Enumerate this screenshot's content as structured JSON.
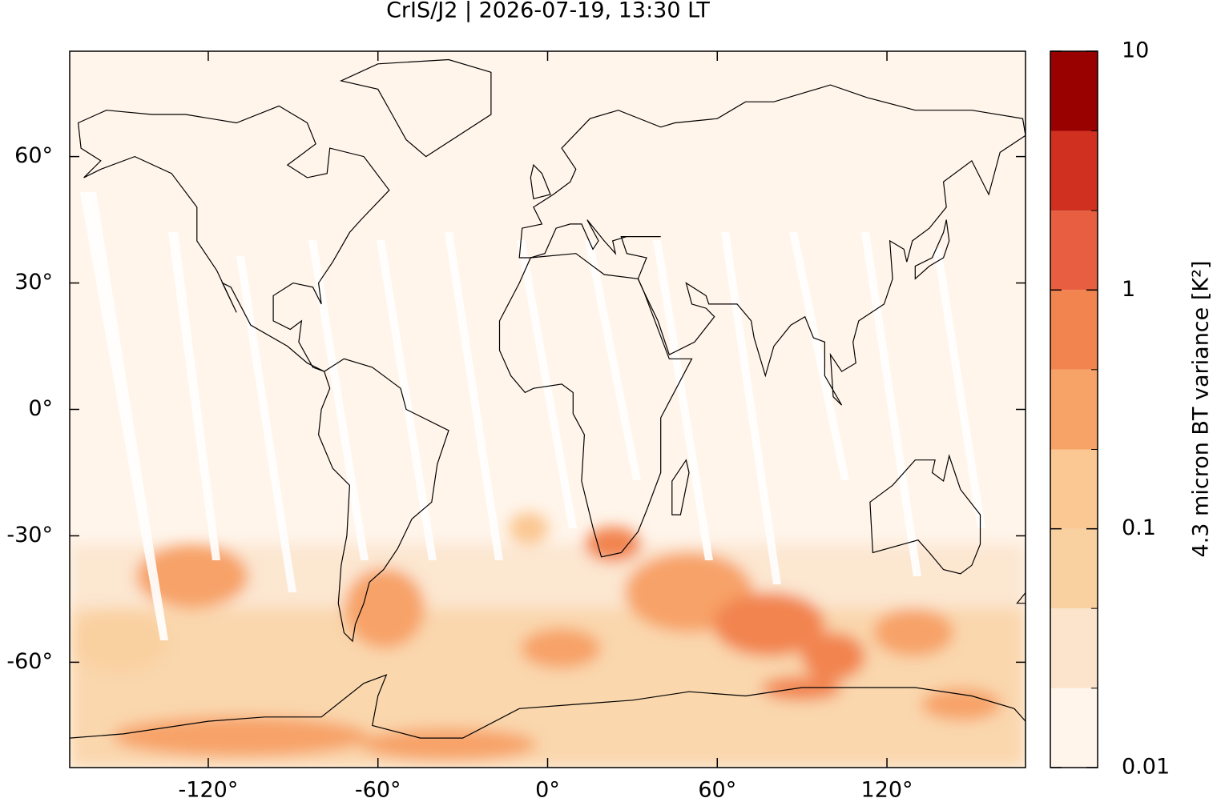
{
  "chart_data": {
    "type": "map",
    "title": "CrIS/J2 | 2026-07-19, 13:30 LT",
    "xlim": [
      -169,
      169
    ],
    "ylim": [
      -85,
      85
    ],
    "xticks": [
      {
        "value": -120,
        "label": "-120°"
      },
      {
        "value": -60,
        "label": "-60°"
      },
      {
        "value": 0,
        "label": "0°"
      },
      {
        "value": 60,
        "label": "60°"
      },
      {
        "value": 120,
        "label": "120°"
      }
    ],
    "yticks": [
      {
        "value": 60,
        "label": "60°"
      },
      {
        "value": 30,
        "label": "30°"
      },
      {
        "value": 0,
        "label": "0°"
      },
      {
        "value": -30,
        "label": "-30°"
      },
      {
        "value": -60,
        "label": "-60°"
      }
    ],
    "colorbar": {
      "label": "4.3 micron BT variance [K²]",
      "scale": "log",
      "lim": [
        0.01,
        10
      ],
      "ticks": [
        0.01,
        0.1,
        1,
        10
      ],
      "boundaries": [
        0.01,
        0.0215,
        0.0464,
        0.1,
        0.215,
        0.464,
        1,
        2.15,
        4.64,
        10
      ],
      "colors": [
        "#fff5eb",
        "#fbe4cb",
        "#f9d0a0",
        "#fbc792",
        "#f7a267",
        "#f2844f",
        "#e85e41",
        "#d0301f",
        "#990000"
      ]
    }
  }
}
